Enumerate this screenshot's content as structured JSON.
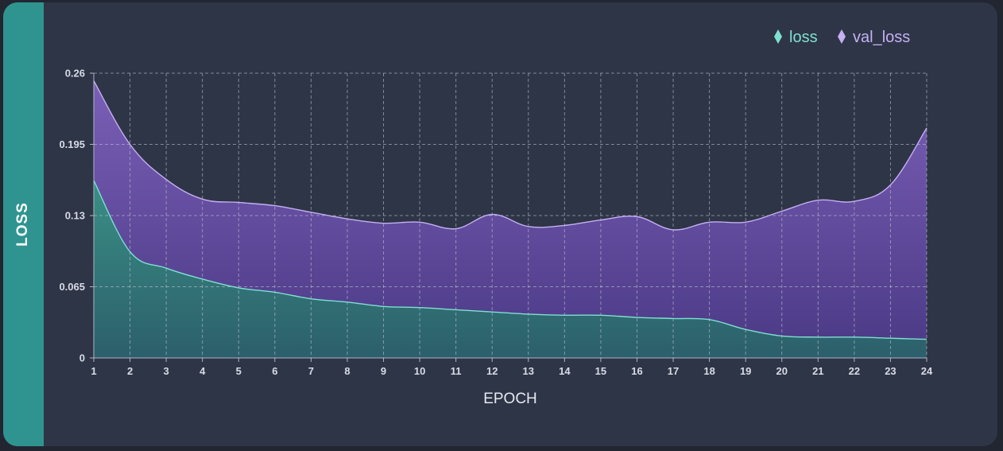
{
  "chart_data": {
    "type": "area",
    "ylabel": "LOSS",
    "xlabel": "EPOCH",
    "x": [
      1,
      2,
      3,
      4,
      5,
      6,
      7,
      8,
      9,
      10,
      11,
      12,
      13,
      14,
      15,
      16,
      17,
      18,
      19,
      20,
      21,
      22,
      23,
      24
    ],
    "yticks": [
      "0",
      "0.065",
      "0.13",
      "0.195",
      "0.26"
    ],
    "ylim": [
      0,
      0.26
    ],
    "grid": true,
    "legend_position": "top-right",
    "series": [
      {
        "name": "loss",
        "color": "#7ee0d0",
        "values": [
          0.162,
          0.097,
          0.082,
          0.072,
          0.064,
          0.06,
          0.054,
          0.051,
          0.047,
          0.046,
          0.044,
          0.042,
          0.04,
          0.039,
          0.039,
          0.037,
          0.036,
          0.035,
          0.026,
          0.02,
          0.019,
          0.019,
          0.018,
          0.017
        ]
      },
      {
        "name": "val_loss",
        "color": "#c5b0f2",
        "values": [
          0.253,
          0.195,
          0.163,
          0.145,
          0.142,
          0.139,
          0.133,
          0.127,
          0.123,
          0.124,
          0.118,
          0.131,
          0.12,
          0.121,
          0.126,
          0.129,
          0.117,
          0.124,
          0.124,
          0.134,
          0.144,
          0.143,
          0.158,
          0.21
        ]
      }
    ]
  }
}
